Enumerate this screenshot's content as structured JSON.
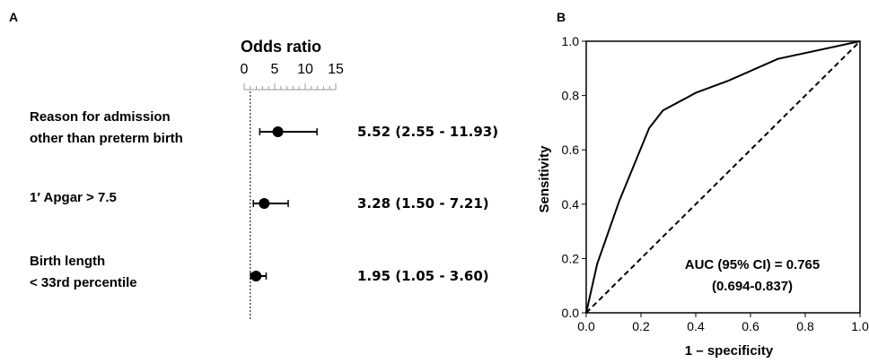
{
  "panel_a": {
    "letter": "A",
    "chart_data": {
      "type": "forest",
      "title": "Odds ratio",
      "xlim": [
        0,
        15
      ],
      "xticks": [
        0,
        5,
        10,
        15
      ],
      "minor_tick_step": 1,
      "reference_line": 1,
      "rows": [
        {
          "label_lines": [
            "Reason for admission",
            "other than preterm birth"
          ],
          "or": 5.52,
          "ci_low": 2.55,
          "ci_high": 11.93,
          "estimate_text": "5.52 (2.55 - 11.93)"
        },
        {
          "label_lines": [
            "1′ Apgar > 7.5"
          ],
          "or": 3.28,
          "ci_low": 1.5,
          "ci_high": 7.21,
          "estimate_text": "3.28 (1.50 - 7.21)"
        },
        {
          "label_lines": [
            "Birth length",
            "< 33rd percentile"
          ],
          "or": 1.95,
          "ci_low": 1.05,
          "ci_high": 3.6,
          "estimate_text": "1.95 (1.05 - 3.60)"
        }
      ]
    }
  },
  "panel_b": {
    "letter": "B",
    "chart_data": {
      "type": "line",
      "xlabel": "1 – specificity",
      "ylabel": "Sensitivity",
      "xlim": [
        0,
        1
      ],
      "ylim": [
        0,
        1
      ],
      "xticks": [
        0.0,
        0.2,
        0.4,
        0.6,
        0.8,
        1.0
      ],
      "yticks": [
        0.0,
        0.2,
        0.4,
        0.6,
        0.8,
        1.0
      ],
      "grid": false,
      "series": [
        {
          "style": "solid",
          "x": [
            0.0,
            0.04,
            0.12,
            0.23,
            0.28,
            0.4,
            0.52,
            0.7,
            1.0
          ],
          "y": [
            0.0,
            0.18,
            0.41,
            0.68,
            0.745,
            0.81,
            0.855,
            0.935,
            1.0
          ]
        },
        {
          "style": "dashed",
          "x": [
            0,
            1
          ],
          "y": [
            0,
            1
          ]
        }
      ],
      "annotation_lines": [
        "AUC (95% CI) = 0.765",
        "(0.694-0.837)"
      ]
    }
  }
}
